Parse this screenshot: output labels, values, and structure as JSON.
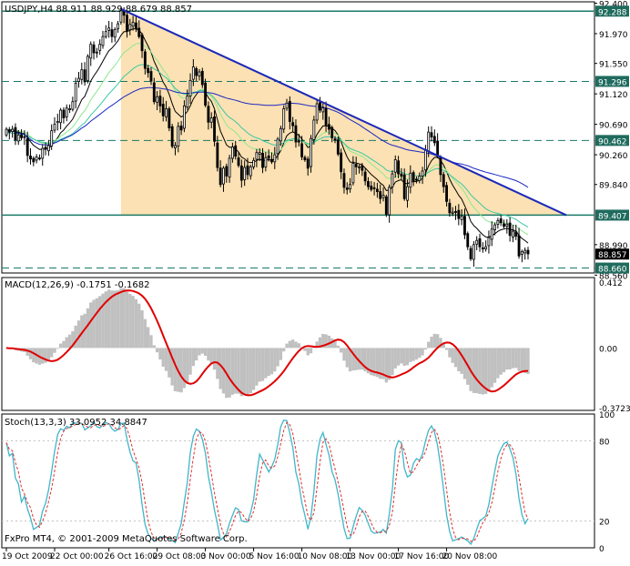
{
  "colors": {
    "background": "#ffffff",
    "frame": "#000000",
    "candle_bull": "#ffffff",
    "candle_bear": "#000000",
    "triangle_fill": "#fbe1b3",
    "trendline": "#1c28b8",
    "ma_black": "#000000",
    "ma_blue": "#1b27c4",
    "ma_lightgreen": "#8fe88f",
    "ma_teal": "#3cc8a3",
    "level_line": "#1a7a66",
    "level_label_bg": "#1f6b5e",
    "macd_hist": "#c0c0c0",
    "macd_signal": "#e00000",
    "stoch_main": "#40b6c8",
    "stoch_signal": "#e03030",
    "current_price_bg": "#000000"
  },
  "header": {
    "main": "USDJPY,H4  88.911 88.929 88.679 88.857",
    "macd": "MACD(12,26,9) -0.1751 -0.1682",
    "stoch": "Stoch(13,3,3) 33.0952 34.8847"
  },
  "copyright": "FxPro MT4, © 2001-2009 MetaQuotes Software Corp.",
  "chart_data": [
    {
      "type": "candlestick",
      "symbol": "USDJPY",
      "timeframe": "H4",
      "ohlc_last": {
        "open": 88.911,
        "high": 88.929,
        "low": 88.679,
        "close": 88.857
      },
      "ylim": [
        88.59,
        92.42
      ],
      "y_ticks": [
        "92.400",
        "91.970",
        "91.550",
        "91.120",
        "90.690",
        "90.260",
        "89.840",
        "88.990",
        "88.560"
      ],
      "y_tick_values": [
        92.4,
        91.97,
        91.55,
        91.12,
        90.69,
        90.26,
        89.84,
        88.99,
        88.56
      ],
      "level_labels": [
        {
          "label": "92.288",
          "value": 92.288
        },
        {
          "label": "91.296",
          "value": 91.296
        },
        {
          "label": "90.462",
          "value": 90.462
        },
        {
          "label": "89.407",
          "value": 89.407
        },
        {
          "label": "88.660",
          "value": 88.66
        }
      ],
      "current_price_label": "88.857",
      "current_price": 88.857,
      "solid_levels": [
        92.288,
        89.407
      ],
      "dashed_levels": [
        91.296,
        90.462,
        88.66
      ],
      "close_series": [
        90.62,
        90.58,
        90.62,
        90.47,
        90.54,
        90.5,
        90.51,
        90.25,
        90.2,
        90.16,
        90.23,
        90.21,
        90.35,
        90.34,
        90.39,
        90.6,
        90.69,
        90.73,
        90.89,
        90.78,
        90.92,
        90.91,
        91.01,
        91.27,
        91.34,
        91.46,
        91.29,
        91.65,
        91.82,
        91.7,
        91.71,
        91.82,
        91.93,
        92.0,
        92.05,
        91.93,
        92.03,
        92.11,
        92.3,
        92.23,
        92.01,
        92.1,
        92.13,
        92.04,
        91.93,
        91.73,
        91.48,
        91.42,
        91.3,
        91.01,
        91.08,
        90.95,
        90.81,
        90.91,
        90.64,
        90.38,
        90.39,
        90.66,
        90.61,
        90.95,
        91.09,
        91.31,
        91.5,
        91.38,
        91.43,
        91.25,
        90.96,
        90.72,
        90.78,
        90.45,
        90.08,
        89.84,
        90.07,
        89.96,
        90.21,
        90.37,
        90.24,
        90.11,
        89.9,
        90.08,
        89.98,
        90.09,
        90.18,
        90.29,
        90.29,
        90.08,
        90.22,
        90.21,
        90.16,
        90.26,
        90.48,
        90.63,
        90.91,
        90.99,
        90.73,
        90.67,
        90.44,
        90.44,
        90.23,
        90.19,
        90.07,
        90.49,
        90.75,
        90.98,
        90.89,
        90.92,
        90.68,
        90.62,
        90.5,
        90.47,
        90.27,
        90.02,
        89.8,
        89.77,
        89.84,
        90.14,
        90.09,
        90.09,
        90.04,
        89.89,
        89.81,
        89.77,
        89.79,
        89.74,
        89.64,
        89.69,
        89.42,
        89.8,
        89.99,
        90.19,
        89.99,
        89.96,
        89.64,
        89.81,
        90.0,
        89.89,
        89.91,
        89.96,
        90.03,
        90.33,
        90.58,
        90.51,
        90.43,
        90.24,
        89.98,
        89.81,
        89.6,
        89.44,
        89.45,
        89.45,
        89.36,
        89.39,
        89.13,
        88.96,
        88.79,
        88.99,
        89.05,
        88.96,
        88.93,
        88.96,
        89.09,
        89.21,
        89.27,
        89.33,
        89.3,
        89.25,
        89.28,
        89.12,
        89.18,
        89.11,
        88.83,
        88.89,
        88.91,
        88.86
      ]
    },
    {
      "type": "bar",
      "name": "MACD(12,26,9)",
      "values_last": {
        "main": -0.1751,
        "signal": -0.1682
      },
      "ylim": [
        -0.39,
        0.44
      ],
      "y_ticks": [
        "0.412",
        "0.00",
        "-0.3723"
      ],
      "y_tick_values": [
        0.412,
        0.0,
        -0.3723
      ]
    },
    {
      "type": "line",
      "name": "Stoch(13,3,3)",
      "values_last": {
        "main": 33.0952,
        "signal": 34.8847
      },
      "ylim": [
        0,
        100
      ],
      "y_ticks": [
        "100",
        "80",
        "20",
        "0"
      ],
      "y_tick_values": [
        100,
        80,
        20,
        0
      ]
    }
  ],
  "x_axis_labels": [
    {
      "label": "19 Oct 2009",
      "index": 0
    },
    {
      "label": "22 Oct 00:00",
      "index": 16
    },
    {
      "label": "26 Oct 16:00",
      "index": 34
    },
    {
      "label": "29 Oct 08:00",
      "index": 50
    },
    {
      "label": "3 Nov 00:00",
      "index": 66
    },
    {
      "label": "5 Nov 16:00",
      "index": 82
    },
    {
      "label": "10 Nov 08:00",
      "index": 98
    },
    {
      "label": "13 Nov 00:00",
      "index": 114
    },
    {
      "label": "17 Nov 16:00",
      "index": 130
    },
    {
      "label": "20 Nov 08:00",
      "index": 146
    }
  ]
}
